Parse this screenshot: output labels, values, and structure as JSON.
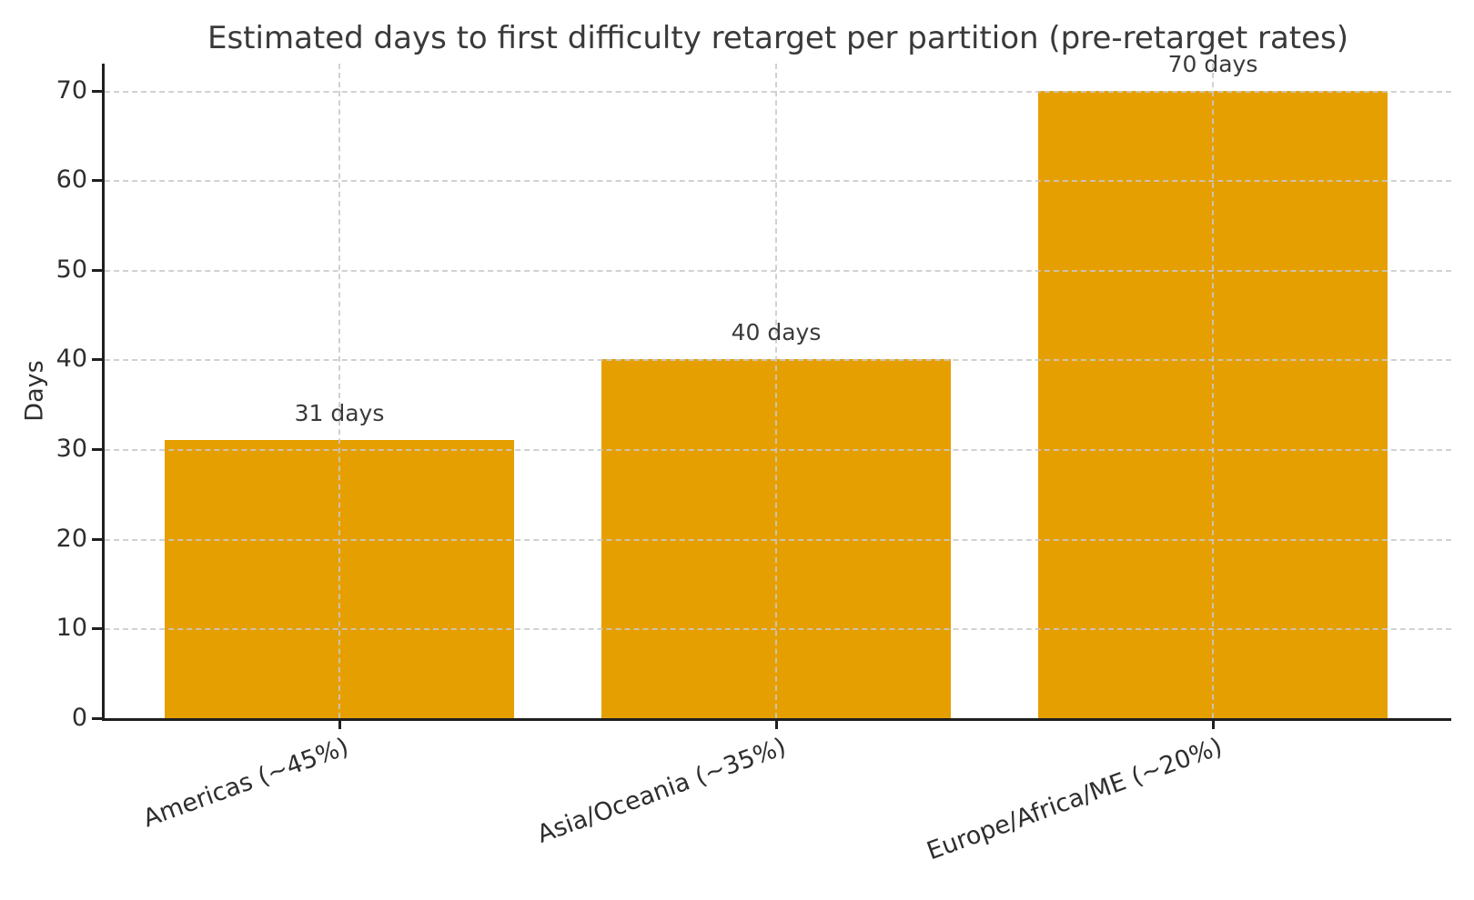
{
  "chart_data": {
    "type": "bar",
    "title": "Estimated days to first difficulty retarget per partition (pre-retarget rates)",
    "xlabel": "",
    "ylabel": "Days",
    "categories": [
      "Americas (~45%)",
      "Asia/Oceania (~35%)",
      "Europe/Africa/ME (~20%)"
    ],
    "values": [
      31,
      40,
      70
    ],
    "bar_labels": [
      "31 days",
      "40 days",
      "70 days"
    ],
    "ytick_labels": [
      "0",
      "10",
      "20",
      "30",
      "40",
      "50",
      "60",
      "70"
    ],
    "yticks": [
      0,
      10,
      20,
      30,
      40,
      50,
      60,
      70
    ],
    "ylim": [
      0,
      73
    ],
    "grid": "dashed, horizontal at y-ticks and vertical at bar centers",
    "legend": "none",
    "colors": {
      "bar": "#E69F00",
      "text": "#3a3a3a",
      "tick_text": "#2e2e2e",
      "grid": "#c9c9c9",
      "spine": "#1f1f1f",
      "background": "#ffffff"
    }
  }
}
